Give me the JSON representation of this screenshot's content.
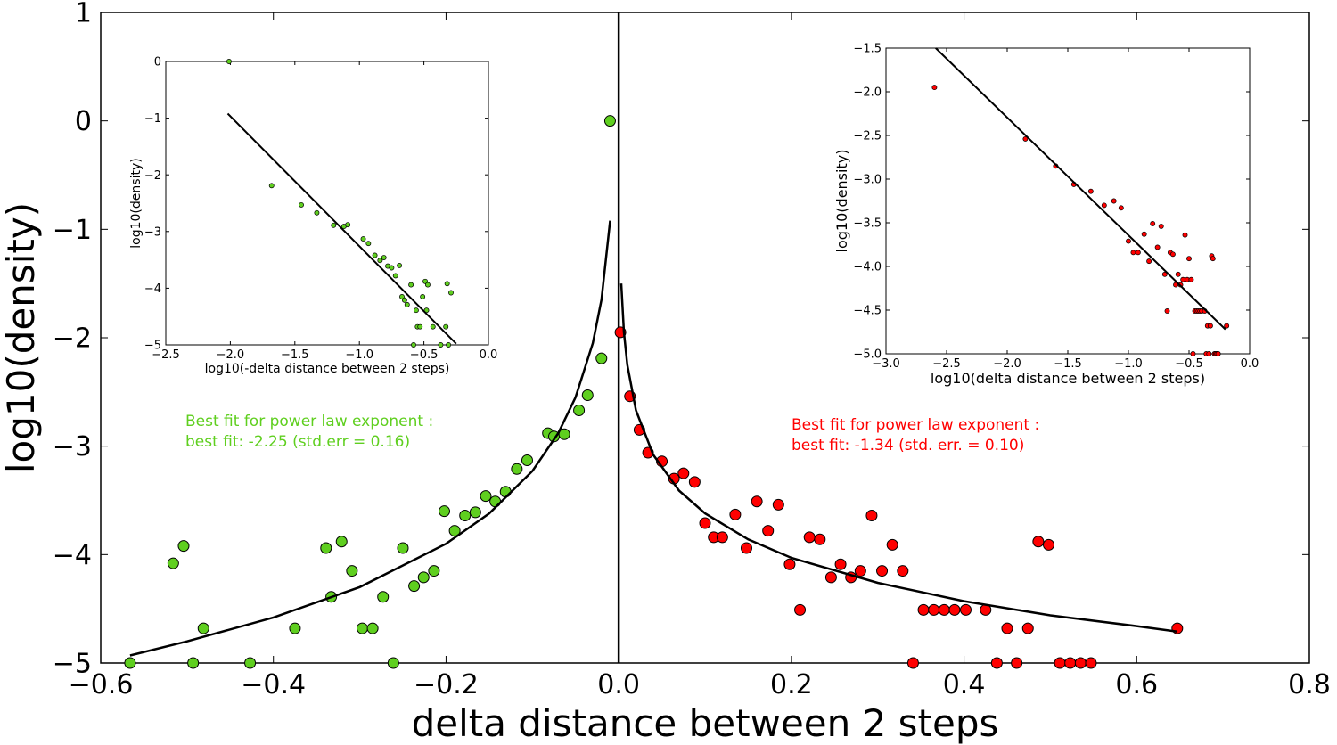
{
  "chart_data": [
    {
      "type": "scatter",
      "xlabel": "delta distance between 2 steps",
      "ylabel": "log10(density)",
      "xlim": [
        -0.6,
        0.8
      ],
      "ylim": [
        -5,
        1
      ],
      "xticks": [
        "−0.6",
        "−0.4",
        "−0.2",
        "0.0",
        "0.2",
        "0.4",
        "0.6",
        "0.8"
      ],
      "yticks": [
        "−5",
        "−4",
        "−3",
        "−2",
        "−1",
        "0",
        "1"
      ],
      "annotations": [
        {
          "lines": [
            "Best fit for power law exponent :",
            "best fit: -2.25 (std.err = 0.16)"
          ],
          "color": "#5fcf1f"
        },
        {
          "lines": [
            "Best fit for power law exponent :",
            "best fit: -1.34 (std. err. = 0.10)"
          ],
          "color": "#ff0000"
        }
      ],
      "series": [
        {
          "color": "#5fcf1f",
          "points": [
            [
              -0.566,
              -5.0
            ],
            [
              -0.516,
              -4.08
            ],
            [
              -0.504,
              -3.92
            ],
            [
              -0.493,
              -5.0
            ],
            [
              -0.481,
              -4.68
            ],
            [
              -0.427,
              -5.0
            ],
            [
              -0.375,
              -4.68
            ],
            [
              -0.339,
              -3.94
            ],
            [
              -0.333,
              -4.39
            ],
            [
              -0.321,
              -3.88
            ],
            [
              -0.309,
              -4.15
            ],
            [
              -0.297,
              -4.68
            ],
            [
              -0.285,
              -4.68
            ],
            [
              -0.273,
              -4.39
            ],
            [
              -0.261,
              -5.0
            ],
            [
              -0.25,
              -3.94
            ],
            [
              -0.237,
              -4.29
            ],
            [
              -0.226,
              -4.21
            ],
            [
              -0.214,
              -4.15
            ],
            [
              -0.202,
              -3.6
            ],
            [
              -0.19,
              -3.78
            ],
            [
              -0.178,
              -3.64
            ],
            [
              -0.166,
              -3.61
            ],
            [
              -0.154,
              -3.46
            ],
            [
              -0.143,
              -3.51
            ],
            [
              -0.131,
              -3.42
            ],
            [
              -0.118,
              -3.21
            ],
            [
              -0.106,
              -3.13
            ],
            [
              -0.082,
              -2.88
            ],
            [
              -0.075,
              -2.91
            ],
            [
              -0.063,
              -2.89
            ],
            [
              -0.046,
              -2.67
            ],
            [
              -0.036,
              -2.53
            ],
            [
              -0.02,
              -2.19
            ],
            [
              -0.01,
              0.0
            ]
          ],
          "fit": [
            [
              -0.566,
              -4.93
            ],
            [
              -0.5,
              -4.8
            ],
            [
              -0.4,
              -4.58
            ],
            [
              -0.3,
              -4.3
            ],
            [
              -0.2,
              -3.9
            ],
            [
              -0.15,
              -3.62
            ],
            [
              -0.1,
              -3.23
            ],
            [
              -0.07,
              -2.88
            ],
            [
              -0.05,
              -2.55
            ],
            [
              -0.03,
              -2.05
            ],
            [
              -0.02,
              -1.65
            ],
            [
              -0.01,
              -0.92
            ]
          ]
        },
        {
          "color": "#ff0000",
          "points": [
            [
              0.002,
              -1.95
            ],
            [
              0.013,
              -2.54
            ],
            [
              0.024,
              -2.85
            ],
            [
              0.034,
              -3.06
            ],
            [
              0.05,
              -3.14
            ],
            [
              0.064,
              -3.3
            ],
            [
              0.075,
              -3.25
            ],
            [
              0.088,
              -3.33
            ],
            [
              0.1,
              -3.71
            ],
            [
              0.11,
              -3.84
            ],
            [
              0.12,
              -3.84
            ],
            [
              0.135,
              -3.63
            ],
            [
              0.148,
              -3.94
            ],
            [
              0.16,
              -3.51
            ],
            [
              0.173,
              -3.78
            ],
            [
              0.185,
              -3.54
            ],
            [
              0.198,
              -4.09
            ],
            [
              0.21,
              -4.51
            ],
            [
              0.221,
              -3.84
            ],
            [
              0.233,
              -3.86
            ],
            [
              0.246,
              -4.21
            ],
            [
              0.257,
              -4.09
            ],
            [
              0.269,
              -4.21
            ],
            [
              0.28,
              -4.15
            ],
            [
              0.293,
              -3.64
            ],
            [
              0.305,
              -4.15
            ],
            [
              0.317,
              -3.91
            ],
            [
              0.329,
              -4.15
            ],
            [
              0.341,
              -5.0
            ],
            [
              0.353,
              -4.51
            ],
            [
              0.365,
              -4.51
            ],
            [
              0.377,
              -4.51
            ],
            [
              0.389,
              -4.51
            ],
            [
              0.402,
              -4.51
            ],
            [
              0.425,
              -4.51
            ],
            [
              0.438,
              -5.0
            ],
            [
              0.45,
              -4.68
            ],
            [
              0.461,
              -5.0
            ],
            [
              0.474,
              -4.68
            ],
            [
              0.486,
              -3.88
            ],
            [
              0.498,
              -3.91
            ],
            [
              0.511,
              -5.0
            ],
            [
              0.523,
              -5.0
            ],
            [
              0.535,
              -5.0
            ],
            [
              0.547,
              -5.0
            ],
            [
              0.647,
              -4.68
            ]
          ],
          "fit": [
            [
              0.003,
              -1.5
            ],
            [
              0.006,
              -1.95
            ],
            [
              0.01,
              -2.25
            ],
            [
              0.02,
              -2.67
            ],
            [
              0.04,
              -3.08
            ],
            [
              0.07,
              -3.41
            ],
            [
              0.1,
              -3.62
            ],
            [
              0.15,
              -3.86
            ],
            [
              0.2,
              -4.03
            ],
            [
              0.3,
              -4.26
            ],
            [
              0.4,
              -4.43
            ],
            [
              0.5,
              -4.56
            ],
            [
              0.6,
              -4.66
            ],
            [
              0.647,
              -4.71
            ]
          ]
        }
      ]
    },
    {
      "type": "scatter",
      "xlabel": "log10(-delta distance between 2 steps)",
      "ylabel": "log10(density)",
      "xlim": [
        -2.5,
        0.0
      ],
      "ylim": [
        -5,
        0
      ],
      "xticks": [
        "−2.5",
        "−2.0",
        "−1.5",
        "−1.0",
        "−0.5",
        "0.0"
      ],
      "yticks": [
        "−5",
        "−4",
        "−3",
        "−2",
        "−1",
        "0"
      ],
      "series": [
        {
          "color": "#5fcf1f",
          "points": [
            [
              -2.01,
              0.0
            ],
            [
              -1.68,
              -2.19
            ],
            [
              -1.45,
              -2.53
            ],
            [
              -1.33,
              -2.67
            ],
            [
              -1.2,
              -2.89
            ],
            [
              -1.12,
              -2.91
            ],
            [
              -1.09,
              -2.88
            ],
            [
              -0.97,
              -3.13
            ],
            [
              -0.93,
              -3.21
            ],
            [
              -0.88,
              -3.42
            ],
            [
              -0.84,
              -3.51
            ],
            [
              -0.81,
              -3.46
            ],
            [
              -0.78,
              -3.61
            ],
            [
              -0.75,
              -3.64
            ],
            [
              -0.72,
              -3.78
            ],
            [
              -0.69,
              -3.6
            ],
            [
              -0.67,
              -4.15
            ],
            [
              -0.65,
              -4.21
            ],
            [
              -0.63,
              -4.29
            ],
            [
              -0.6,
              -3.94
            ],
            [
              -0.58,
              -5.0
            ],
            [
              -0.56,
              -4.39
            ],
            [
              -0.55,
              -4.68
            ],
            [
              -0.53,
              -4.68
            ],
            [
              -0.51,
              -4.15
            ],
            [
              -0.49,
              -3.88
            ],
            [
              -0.48,
              -4.39
            ],
            [
              -0.47,
              -3.94
            ],
            [
              -0.43,
              -4.68
            ],
            [
              -0.37,
              -5.0
            ],
            [
              -0.33,
              -4.68
            ],
            [
              -0.32,
              -3.92
            ],
            [
              -0.29,
              -4.08
            ],
            [
              -0.31,
              -5.0
            ]
          ],
          "fit": [
            [
              -2.02,
              -0.92
            ],
            [
              -0.25,
              -4.98
            ]
          ]
        }
      ]
    },
    {
      "type": "scatter",
      "xlabel": "log10(delta distance between 2 steps)",
      "ylabel": "log10(density)",
      "xlim": [
        -3.0,
        0.0
      ],
      "ylim": [
        -5.0,
        -1.5
      ],
      "xticks": [
        "−3.0",
        "−2.5",
        "−2.0",
        "−1.5",
        "−1.0",
        "−0.5",
        "0.0"
      ],
      "yticks": [
        "−5.0",
        "−4.5",
        "−4.0",
        "−3.5",
        "−3.0",
        "−2.5",
        "−2.0",
        "−1.5"
      ],
      "series": [
        {
          "color": "#ff0000",
          "points": [
            [
              -2.6,
              -1.95
            ],
            [
              -1.85,
              -2.54
            ],
            [
              -1.6,
              -2.85
            ],
            [
              -1.45,
              -3.06
            ],
            [
              -1.31,
              -3.14
            ],
            [
              -1.2,
              -3.3
            ],
            [
              -1.12,
              -3.25
            ],
            [
              -1.06,
              -3.33
            ],
            [
              -1.0,
              -3.71
            ],
            [
              -0.96,
              -3.84
            ],
            [
              -0.92,
              -3.84
            ],
            [
              -0.87,
              -3.63
            ],
            [
              -0.83,
              -3.94
            ],
            [
              -0.8,
              -3.51
            ],
            [
              -0.76,
              -3.78
            ],
            [
              -0.73,
              -3.54
            ],
            [
              -0.7,
              -4.09
            ],
            [
              -0.68,
              -4.51
            ],
            [
              -0.655,
              -3.84
            ],
            [
              -0.633,
              -3.86
            ],
            [
              -0.61,
              -4.21
            ],
            [
              -0.59,
              -4.09
            ],
            [
              -0.57,
              -4.21
            ],
            [
              -0.55,
              -4.15
            ],
            [
              -0.533,
              -3.64
            ],
            [
              -0.515,
              -4.15
            ],
            [
              -0.5,
              -3.91
            ],
            [
              -0.482,
              -4.15
            ],
            [
              -0.467,
              -5.0
            ],
            [
              -0.452,
              -4.51
            ],
            [
              -0.437,
              -4.51
            ],
            [
              -0.424,
              -4.51
            ],
            [
              -0.41,
              -4.51
            ],
            [
              -0.396,
              -4.51
            ],
            [
              -0.371,
              -4.51
            ],
            [
              -0.358,
              -5.0
            ],
            [
              -0.347,
              -4.68
            ],
            [
              -0.336,
              -5.0
            ],
            [
              -0.324,
              -4.68
            ],
            [
              -0.313,
              -3.88
            ],
            [
              -0.303,
              -3.91
            ],
            [
              -0.29,
              -5.0
            ],
            [
              -0.28,
              -5.0
            ],
            [
              -0.27,
              -5.0
            ],
            [
              -0.26,
              -5.0
            ],
            [
              -0.19,
              -4.68
            ]
          ],
          "fit": [
            [
              -2.59,
              -1.5
            ],
            [
              -0.2,
              -4.72
            ]
          ]
        }
      ]
    }
  ]
}
